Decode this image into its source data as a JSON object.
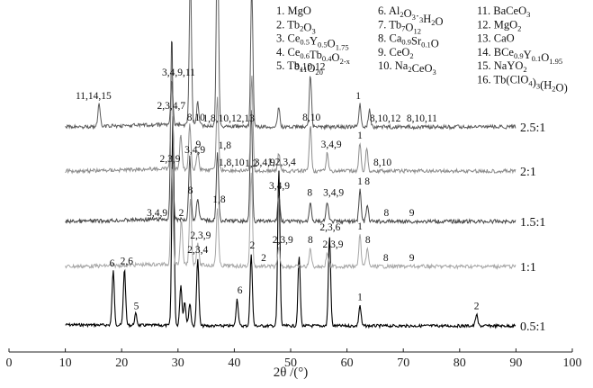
{
  "chart_data": {
    "type": "line",
    "title": "",
    "xlabel": "2θ /(°)",
    "ylabel": "",
    "xlim": [
      0,
      100
    ],
    "xticks": [
      0,
      10,
      20,
      30,
      40,
      50,
      60,
      70,
      80,
      90,
      100
    ],
    "series_colors": [
      "#000000",
      "#a6a6a6",
      "#454545",
      "#8c8c8c",
      "#5a5a5a"
    ],
    "series": [
      {
        "name": "0.5:1",
        "x": [
          10,
          17,
          18.5,
          19.3,
          20.5,
          22.5,
          25,
          28.5,
          29.1,
          29.7,
          30.5,
          31.2,
          32.1,
          33.5,
          35,
          40.5,
          43,
          47.9,
          48.5,
          51.5,
          55,
          56.9,
          58,
          60,
          62.3,
          65,
          70,
          75,
          80,
          83,
          85,
          90
        ],
        "peak": [
          0,
          0,
          2.4,
          0,
          2.5,
          0.5,
          0,
          0,
          9.4,
          0,
          1.8,
          1.1,
          1.0,
          3.0,
          0,
          1.2,
          3.2,
          6.9,
          0,
          3.1,
          0,
          4.0,
          0,
          0,
          0.9,
          0,
          0,
          0,
          0,
          0.5,
          0,
          0
        ]
      },
      {
        "name": "1:1",
        "x": [
          10,
          20,
          28,
          28.9,
          29.5,
          30.6,
          31.5,
          32.2,
          33.5,
          35,
          37,
          38,
          43,
          45,
          47.9,
          50,
          53.5,
          56.5,
          60,
          62.3,
          63.6,
          66,
          70,
          80,
          90
        ],
        "peak": [
          0,
          0,
          0,
          4.4,
          0,
          2.0,
          0,
          3.0,
          1.0,
          0,
          2.6,
          0,
          4.2,
          0,
          0.8,
          0,
          0.8,
          0.6,
          0,
          1.4,
          0.8,
          0,
          0,
          0,
          0
        ]
      },
      {
        "name": "1.5:1",
        "x": [
          10,
          20,
          28,
          28.9,
          29.5,
          31.5,
          32.1,
          33.5,
          35,
          37,
          38,
          43,
          45,
          47.9,
          50,
          53.5,
          56.5,
          60,
          62.3,
          63.6,
          66,
          70,
          80,
          90
        ],
        "peak": [
          0,
          0,
          0,
          8.2,
          0,
          0,
          2.8,
          1.0,
          0,
          3.0,
          0,
          5.0,
          0,
          1.2,
          0,
          0.9,
          0.9,
          0,
          1.4,
          0.7,
          0,
          0,
          0,
          0
        ]
      },
      {
        "name": "2:1",
        "x": [
          10,
          20,
          28,
          28.9,
          29.5,
          30.5,
          31.2,
          32.1,
          33.5,
          35,
          37,
          38,
          43.1,
          45,
          47.9,
          50,
          53.5,
          56.5,
          60,
          62.3,
          63.5,
          66,
          70,
          80,
          90
        ],
        "peak": [
          0,
          0,
          0,
          4.0,
          0,
          1.5,
          0,
          2.0,
          0.8,
          0,
          3.2,
          0,
          4.2,
          0,
          0.8,
          0,
          2.0,
          0.8,
          0,
          1.2,
          1.0,
          0,
          0,
          0,
          0
        ]
      },
      {
        "name": "2.5:1",
        "x": [
          10,
          14,
          16,
          18,
          26,
          28.9,
          30,
          31.5,
          32.2,
          33.5,
          35,
          37,
          38,
          43.1,
          45,
          47.9,
          50,
          53.5,
          55,
          60,
          62.3,
          64,
          66,
          70,
          80,
          90
        ],
        "peak": [
          0,
          0,
          1.0,
          0,
          0,
          2.0,
          0,
          0,
          6.8,
          1.0,
          0,
          9.0,
          0,
          6.2,
          0,
          0.9,
          0,
          2.3,
          0,
          0,
          1.0,
          0.8,
          0,
          0,
          0,
          0
        ]
      }
    ],
    "peak_annotations": [
      {
        "series": "0.5:1",
        "x": 18.3,
        "text": "6"
      },
      {
        "series": "0.5:1",
        "x": 20.9,
        "text": "2,6"
      },
      {
        "series": "0.5:1",
        "x": 22.6,
        "text": "5"
      },
      {
        "series": "0.5:1",
        "x": 28.8,
        "text": "2,3,4,7"
      },
      {
        "series": "0.5:1",
        "x": 33.5,
        "text": "2,3,4"
      },
      {
        "series": "0.5:1",
        "x": 41.0,
        "text": "6"
      },
      {
        "series": "0.5:1",
        "x": 43.2,
        "text": "2"
      },
      {
        "series": "0.5:1",
        "x": 48.4,
        "text": "1,2,3,4"
      },
      {
        "series": "0.5:1",
        "x": 57.0,
        "text": "2,3,6"
      },
      {
        "series": "0.5:1",
        "x": 62.3,
        "text": "1"
      },
      {
        "series": "0.5:1",
        "x": 83.0,
        "text": "2"
      },
      {
        "series": "1:1",
        "x": 28.6,
        "text": "2,3,9"
      },
      {
        "series": "1:1",
        "x": 30.6,
        "text": "2"
      },
      {
        "series": "1:1",
        "x": 32.2,
        "text": "8"
      },
      {
        "series": "1:1",
        "x": 34.0,
        "text": "2,3,9"
      },
      {
        "series": "1:1",
        "x": 37.3,
        "text": "1,8"
      },
      {
        "series": "1:1",
        "x": 43.0,
        "text": "1,2"
      },
      {
        "series": "1:1",
        "x": 45.2,
        "text": "2"
      },
      {
        "series": "1:1",
        "x": 48.6,
        "text": "2,3,9"
      },
      {
        "series": "1:1",
        "x": 53.5,
        "text": "8"
      },
      {
        "series": "1:1",
        "x": 57.5,
        "text": "2,3,9"
      },
      {
        "series": "1:1",
        "x": 62.3,
        "text": "1"
      },
      {
        "series": "1:1",
        "x": 63.7,
        "text": "8"
      },
      {
        "series": "1:1",
        "x": 66.9,
        "text": "8"
      },
      {
        "series": "1:1",
        "x": 71.5,
        "text": "9"
      },
      {
        "series": "1.5:1",
        "x": 26.3,
        "text": "3,4,9"
      },
      {
        "series": "1.5:1",
        "x": 33.0,
        "text": "3,4,9"
      },
      {
        "series": "1.5:1",
        "x": 38.3,
        "text": "1,8"
      },
      {
        "series": "1.5:1",
        "x": 48.0,
        "text": "3,4,9"
      },
      {
        "series": "1.5:1",
        "x": 53.4,
        "text": "8"
      },
      {
        "series": "1.5:1",
        "x": 57.6,
        "text": "3,4,9"
      },
      {
        "series": "1.5:1",
        "x": 62.3,
        "text": "1"
      },
      {
        "series": "1.5:1",
        "x": 63.6,
        "text": "8"
      },
      {
        "series": "1.5:1",
        "x": 67.0,
        "text": "8"
      },
      {
        "series": "1.5:1",
        "x": 71.5,
        "text": "9"
      },
      {
        "series": "2:1",
        "x": 30.1,
        "text": "3,4,9,11"
      },
      {
        "series": "2:1",
        "x": 33.6,
        "text": "9"
      },
      {
        "series": "2:1",
        "x": 39.5,
        "text": "1,8,10"
      },
      {
        "series": "2:1",
        "x": 45.4,
        "text": "3,4,9"
      },
      {
        "series": "2:1",
        "x": 53.7,
        "text": "8,10"
      },
      {
        "series": "2:1",
        "x": 57.2,
        "text": "3,4,9"
      },
      {
        "series": "2:1",
        "x": 62.3,
        "text": "1"
      },
      {
        "series": "2:1",
        "x": 66.3,
        "text": "8,10"
      },
      {
        "series": "2:1",
        "x": 33.2,
        "text": "8,10"
      },
      {
        "series": "2.5:1",
        "x": 15.0,
        "text": "11,14,15"
      },
      {
        "series": "2.5:1",
        "x": 31.2,
        "text": "8,10,13"
      },
      {
        "series": "2.5:1",
        "x": 39.0,
        "text": "1,8,10,12,13"
      },
      {
        "series": "2.5:1",
        "x": 44.0,
        "text": "1,16"
      },
      {
        "series": "2.5:1",
        "x": 53.4,
        "text": "8,10,12"
      },
      {
        "series": "2.5:1",
        "x": 62.0,
        "text": "1"
      },
      {
        "series": "2.5:1",
        "x": 66.8,
        "text": "8,10,12"
      },
      {
        "series": "2.5:1",
        "x": 73.3,
        "text": "8,10,11"
      }
    ],
    "legend": {
      "placement": "top-right",
      "entries": [
        {
          "num": "1.",
          "sym": "MgO"
        },
        {
          "num": "2.",
          "sym": "Tb2O3"
        },
        {
          "num": "3.",
          "sym": "Ce0.5Y0.5O1.75"
        },
        {
          "num": "4.",
          "sym": "Ce0.6Tb0.4O2-x"
        },
        {
          "num": "5.",
          "sym": "Tb11O20"
        },
        {
          "num": "6.",
          "sym": "Al2O3·3H2O"
        },
        {
          "num": "7.",
          "sym": "Tb7O12"
        },
        {
          "num": "8.",
          "sym": "Ca0.9Sr0.1O"
        },
        {
          "num": "9.",
          "sym": "CeO2"
        },
        {
          "num": "10.",
          "sym": "Na2CeO3"
        },
        {
          "num": "11.",
          "sym": "BaCeO3"
        },
        {
          "num": "12.",
          "sym": "MgO2"
        },
        {
          "num": "13.",
          "sym": "CaO"
        },
        {
          "num": "14.",
          "sym": "BCe0.9Y0.1O1.95"
        },
        {
          "num": "15.",
          "sym": "NaYO2"
        },
        {
          "num": "16.",
          "sym": "Tb(ClO4)3(H2O)"
        }
      ]
    },
    "grid": false
  }
}
